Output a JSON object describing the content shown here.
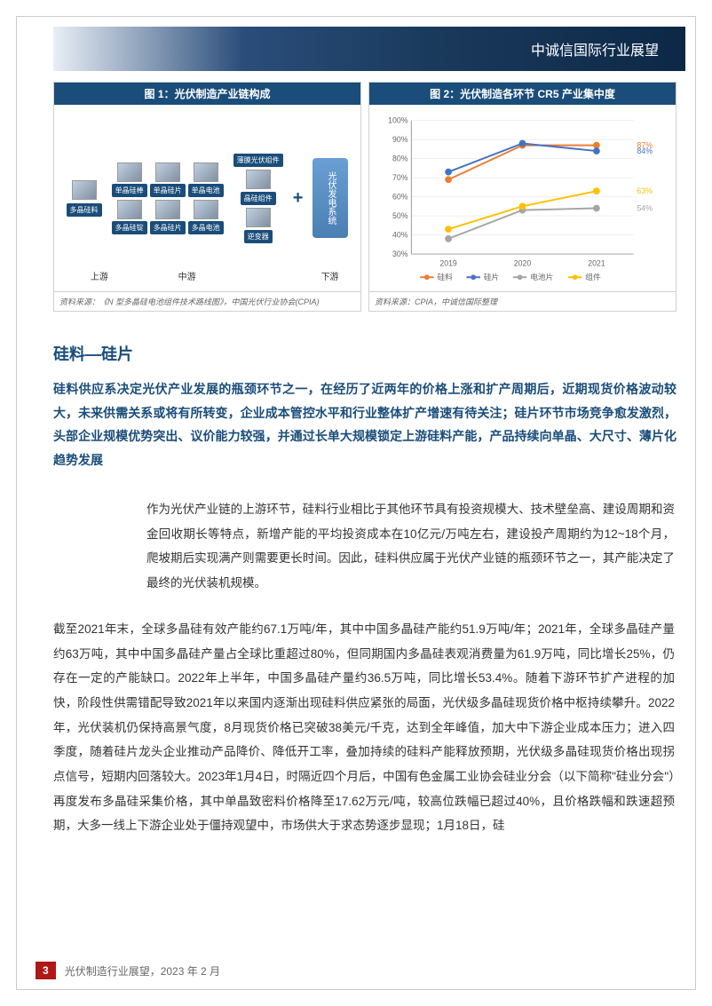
{
  "header": {
    "title": "中诚信国际行业展望"
  },
  "figure1": {
    "title": "图 1：光伏制造产业链构成",
    "source": "资料来源：《N 型多晶硅电池组件技术路线图》，中国光伏行业协会(CPIA)",
    "upstream_label": "上游",
    "midstream_label": "中游",
    "downstream_label": "下游",
    "nodes": {
      "poly_si": "多晶硅料",
      "mono_ingot": "单晶硅棒",
      "poly_ingot": "多晶硅锭",
      "mono_wafer": "单晶硅片",
      "poly_wafer": "多晶硅片",
      "mono_cell": "单晶电池",
      "poly_cell": "多晶电池",
      "thin_film": "薄膜光伏组件",
      "crystal_module": "晶硅组件",
      "inverter": "逆变器",
      "pv_system": "光伏发电系统"
    }
  },
  "figure2": {
    "title": "图 2：光伏制造各环节 CR5 产业集中度",
    "source": "资料来源：CPIA，中诚信国际整理",
    "type": "line",
    "categories": [
      "2019",
      "2020",
      "2021"
    ],
    "y_axis": {
      "min": 30,
      "max": 100,
      "step": 10,
      "format": "percent",
      "ticks": [
        "30%",
        "40%",
        "50%",
        "60%",
        "70%",
        "80%",
        "90%",
        "100%"
      ]
    },
    "series": [
      {
        "name": "硅料",
        "color": "#ed7d31",
        "marker": "circle",
        "values": [
          69,
          87,
          87
        ],
        "end_label": "87%"
      },
      {
        "name": "硅片",
        "color": "#4472c4",
        "marker": "circle",
        "values": [
          73,
          88,
          84
        ],
        "end_label": "84%"
      },
      {
        "name": "电池片",
        "color": "#a5a5a5",
        "marker": "circle",
        "values": [
          38,
          53,
          54
        ],
        "end_label": "54%"
      },
      {
        "name": "组件",
        "color": "#ffc000",
        "marker": "circle",
        "values": [
          43,
          55,
          63
        ],
        "end_label": "63%"
      }
    ],
    "background_color": "#ffffff",
    "grid_color": "#e0e0e0",
    "axis_label_fontsize": 9,
    "legend_fontsize": 9,
    "line_width": 2,
    "marker_size": 4
  },
  "section": {
    "heading": "硅料—硅片",
    "summary": "硅料供应系决定光伏产业发展的瓶颈环节之一，在经历了近两年的价格上涨和扩产周期后，近期现货价格波动较大，未来供需关系或将有所转变，企业成本管控水平和行业整体扩产增速有待关注；硅片环节市场竞争愈发激烈，头部企业规模优势突出、议价能力较强，并通过长单大规模锁定上游硅料产能，产品持续向单晶、大尺寸、薄片化趋势发展"
  },
  "body": {
    "para1": "作为光伏产业链的上游环节，硅料行业相比于其他环节具有投资规模大、技术壁垒高、建设周期和资金回收期长等特点，新增产能的平均投资成本在10亿元/万吨左右，建设投产周期约为12~18个月，爬坡期后实现满产则需要更长时间。因此，硅料供应属于光伏产业链的瓶颈环节之一，其产能决定了最终的光伏装机规模。",
    "para2": "截至2021年末，全球多晶硅有效产能约67.1万吨/年，其中中国多晶硅产能约51.9万吨/年；2021年，全球多晶硅产量约63万吨，其中中国多晶硅产量占全球比重超过80%，但同期国内多晶硅表观消费量为61.9万吨，同比增长25%，仍存在一定的产能缺口。2022年上半年，中国多晶硅产量约36.5万吨，同比增长53.4%。随着下游环节扩产进程的加快，阶段性供需错配导致2021年以来国内逐渐出现硅料供应紧张的局面，光伏级多晶硅现货价格中枢持续攀升。2022年，光伏装机仍保持高景气度，8月现货价格已突破38美元/千克，达到全年峰值，加大中下游企业成本压力；进入四季度，随着硅片龙头企业推动产品降价、降低开工率，叠加持续的硅料产能释放预期，光伏级多晶硅现货价格出现拐点信号，短期内回落较大。2023年1月4日，时隔近四个月后，中国有色金属工业协会硅业分会（以下简称\"硅业分会\"）再度发布多晶硅采集价格，其中单晶致密料价格降至17.62万元/吨，较高位跌幅已超过40%，且价格跌幅和跌速超预期，大多一线上下游企业处于僵持观望中，市场供大于求态势逐步显现；1月18日，硅"
  },
  "footer": {
    "page": "3",
    "text": "光伏制造行业展望，2023 年 2 月"
  }
}
